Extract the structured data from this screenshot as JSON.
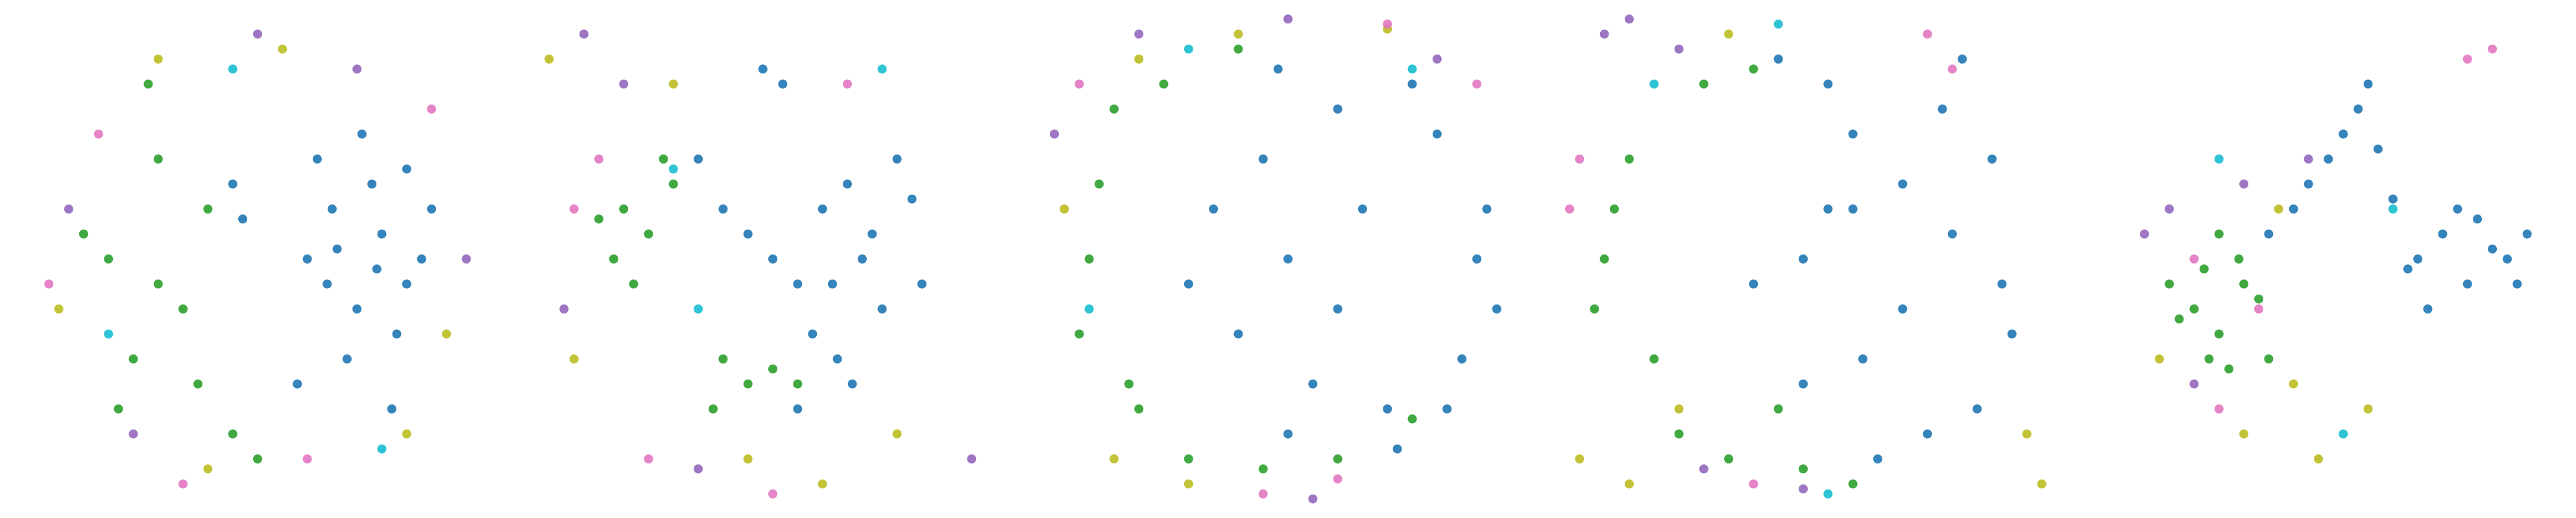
{
  "chart_data": [
    {
      "type": "scatter",
      "xlim": [
        0,
        100
      ],
      "ylim": [
        0,
        100
      ],
      "series": [
        {
          "color": "#bcbd22",
          "x": [
            10,
            30,
            55,
            80,
            88,
            40
          ],
          "y": [
            40,
            90,
            92,
            15,
            35,
            8
          ]
        },
        {
          "color": "#9467bd",
          "x": [
            12,
            70,
            92,
            50,
            25
          ],
          "y": [
            60,
            88,
            50,
            95,
            15
          ]
        },
        {
          "color": "#e377c2",
          "x": [
            18,
            60,
            85,
            35,
            8
          ],
          "y": [
            75,
            10,
            80,
            5,
            45
          ]
        },
        {
          "color": "#17becf",
          "x": [
            45,
            75,
            20
          ],
          "y": [
            88,
            12,
            35
          ]
        },
        {
          "color": "#2ca02c",
          "x": [
            20,
            25,
            30,
            35,
            40,
            15,
            22,
            28,
            38,
            45,
            50,
            30
          ],
          "y": [
            50,
            30,
            70,
            40,
            60,
            55,
            20,
            85,
            25,
            15,
            10,
            45
          ]
        },
        {
          "color": "#1f77b4",
          "x": [
            60,
            65,
            70,
            75,
            80,
            62,
            68,
            73,
            78,
            83,
            58,
            64,
            71,
            77,
            85,
            45,
            47,
            66,
            74,
            80
          ],
          "y": [
            50,
            60,
            40,
            55,
            45,
            70,
            30,
            65,
            35,
            50,
            25,
            45,
            75,
            20,
            60,
            65,
            58,
            52,
            48,
            68
          ]
        }
      ]
    },
    {
      "type": "scatter",
      "xlim": [
        0,
        100
      ],
      "ylim": [
        0,
        100
      ],
      "series": [
        {
          "color": "#bcbd22",
          "x": [
            5,
            10,
            30,
            45,
            60,
            75
          ],
          "y": [
            90,
            30,
            85,
            10,
            5,
            15
          ]
        },
        {
          "color": "#9467bd",
          "x": [
            12,
            20,
            8,
            35,
            90
          ],
          "y": [
            95,
            85,
            40,
            8,
            10
          ]
        },
        {
          "color": "#e377c2",
          "x": [
            15,
            65,
            50,
            25,
            10
          ],
          "y": [
            70,
            85,
            3,
            10,
            60
          ]
        },
        {
          "color": "#17becf",
          "x": [
            35,
            30,
            72
          ],
          "y": [
            40,
            68,
            88
          ]
        },
        {
          "color": "#2ca02c",
          "x": [
            20,
            25,
            18,
            30,
            22,
            40,
            45,
            38,
            50,
            55,
            28,
            15
          ],
          "y": [
            60,
            55,
            50,
            65,
            45,
            30,
            25,
            20,
            28,
            25,
            70,
            58
          ]
        },
        {
          "color": "#1f77b4",
          "x": [
            45,
            50,
            55,
            60,
            65,
            70,
            72,
            62,
            58,
            68,
            75,
            52,
            48,
            78,
            35,
            40,
            63,
            66,
            55,
            80
          ],
          "y": [
            55,
            50,
            45,
            60,
            65,
            55,
            40,
            45,
            35,
            50,
            70,
            85,
            88,
            62,
            70,
            60,
            30,
            25,
            20,
            45
          ]
        }
      ]
    },
    {
      "type": "scatter",
      "xlim": [
        0,
        100
      ],
      "ylim": [
        0,
        100
      ],
      "series": [
        {
          "color": "#bcbd22",
          "x": [
            5,
            15,
            40,
            70,
            30,
            20
          ],
          "y": [
            60,
            10,
            95,
            96,
            5,
            90
          ]
        },
        {
          "color": "#9467bd",
          "x": [
            3,
            20,
            55,
            80,
            50
          ],
          "y": [
            75,
            95,
            2,
            90,
            98
          ]
        },
        {
          "color": "#e377c2",
          "x": [
            8,
            45,
            60,
            88,
            70
          ],
          "y": [
            85,
            3,
            6,
            85,
            97
          ]
        },
        {
          "color": "#17becf",
          "x": [
            30,
            75,
            10
          ],
          "y": [
            92,
            88,
            40
          ]
        },
        {
          "color": "#2ca02c",
          "x": [
            10,
            8,
            12,
            20,
            30,
            45,
            60,
            75,
            25,
            15,
            18,
            40
          ],
          "y": [
            50,
            35,
            65,
            20,
            10,
            8,
            10,
            18,
            85,
            80,
            25,
            92
          ]
        },
        {
          "color": "#1f77b4",
          "x": [
            50,
            45,
            60,
            40,
            55,
            70,
            85,
            88,
            80,
            75,
            30,
            65,
            50,
            90,
            92,
            60,
            35,
            48,
            72,
            82
          ],
          "y": [
            50,
            70,
            40,
            35,
            25,
            20,
            30,
            50,
            75,
            85,
            45,
            60,
            15,
            60,
            40,
            80,
            60,
            88,
            12,
            20
          ]
        }
      ]
    },
    {
      "type": "scatter",
      "xlim": [
        0,
        100
      ],
      "ylim": [
        0,
        100
      ],
      "series": [
        {
          "color": "#bcbd22",
          "x": [
            5,
            15,
            25,
            35,
            95,
            98
          ],
          "y": [
            10,
            5,
            20,
            95,
            15,
            5
          ]
        },
        {
          "color": "#9467bd",
          "x": [
            10,
            15,
            25,
            30,
            50
          ],
          "y": [
            95,
            98,
            92,
            8,
            4
          ]
        },
        {
          "color": "#e377c2",
          "x": [
            3,
            5,
            40,
            80,
            75
          ],
          "y": [
            60,
            70,
            5,
            88,
            95
          ]
        },
        {
          "color": "#17becf",
          "x": [
            20,
            45,
            55
          ],
          "y": [
            85,
            97,
            3
          ]
        },
        {
          "color": "#2ca02c",
          "x": [
            10,
            15,
            20,
            30,
            40,
            45,
            50,
            35,
            25,
            60,
            12,
            8
          ],
          "y": [
            50,
            70,
            30,
            85,
            88,
            20,
            8,
            10,
            15,
            5,
            60,
            40
          ]
        },
        {
          "color": "#1f77b4",
          "x": [
            50,
            60,
            70,
            80,
            90,
            85,
            75,
            65,
            55,
            45,
            40,
            60,
            70,
            88,
            92,
            50,
            62,
            78,
            55,
            82
          ],
          "y": [
            50,
            60,
            40,
            55,
            45,
            20,
            15,
            10,
            85,
            90,
            45,
            75,
            65,
            70,
            35,
            25,
            30,
            80,
            60,
            90
          ]
        }
      ]
    },
    {
      "type": "scatter",
      "xlim": [
        0,
        100
      ],
      "ylim": [
        0,
        100
      ],
      "series": [
        {
          "color": "#bcbd22",
          "x": [
            18,
            45,
            50,
            60,
            35,
            42
          ],
          "y": [
            30,
            25,
            10,
            20,
            15,
            60
          ]
        },
        {
          "color": "#9467bd",
          "x": [
            20,
            15,
            35,
            25,
            48
          ],
          "y": [
            60,
            55,
            65,
            25,
            70
          ]
        },
        {
          "color": "#e377c2",
          "x": [
            25,
            38,
            80,
            85,
            30
          ],
          "y": [
            50,
            40,
            90,
            92,
            20
          ]
        },
        {
          "color": "#17becf",
          "x": [
            30,
            55,
            65
          ],
          "y": [
            70,
            15,
            60
          ]
        },
        {
          "color": "#2ca02c",
          "x": [
            25,
            30,
            35,
            28,
            22,
            32,
            38,
            27,
            20,
            34,
            30,
            40
          ],
          "y": [
            40,
            35,
            45,
            30,
            38,
            28,
            42,
            48,
            45,
            50,
            55,
            30
          ]
        },
        {
          "color": "#1f77b4",
          "x": [
            70,
            75,
            80,
            85,
            72,
            78,
            68,
            82,
            88,
            90,
            55,
            58,
            52,
            60,
            62,
            48,
            45,
            40,
            65,
            92
          ],
          "y": [
            50,
            55,
            45,
            52,
            40,
            60,
            48,
            58,
            50,
            45,
            75,
            80,
            70,
            85,
            72,
            65,
            60,
            55,
            62,
            55
          ]
        }
      ]
    }
  ]
}
